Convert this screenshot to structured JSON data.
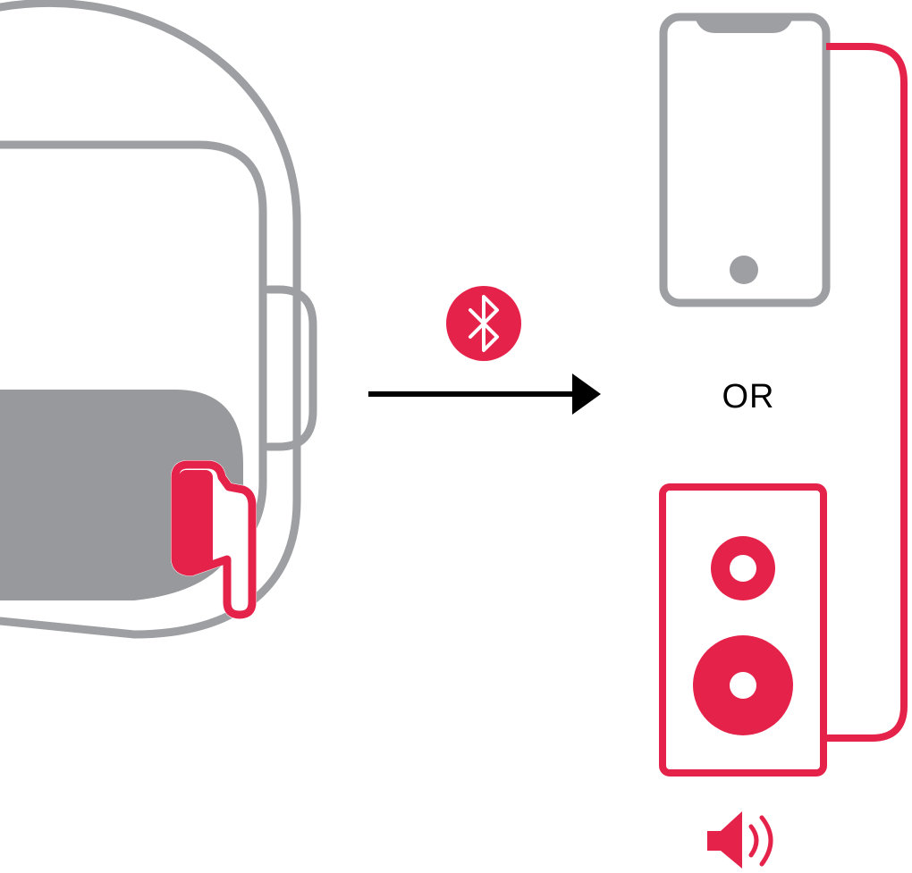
{
  "diagram": {
    "or_label": "OR"
  },
  "colors": {
    "accent": "#e5234a",
    "gray_outline": "#9d9fa2",
    "gray_fill": "#97999c",
    "arrow": "#000000",
    "text": "#000000",
    "background": "#ffffff"
  },
  "icons": {
    "listener": "head-with-earbud-icon",
    "earbud": "earbud-icon",
    "bluetooth": "bluetooth-icon",
    "arrow": "arrow-right-icon",
    "phone": "phone-icon",
    "speaker": "speaker-box-icon",
    "volume": "volume-icon"
  }
}
